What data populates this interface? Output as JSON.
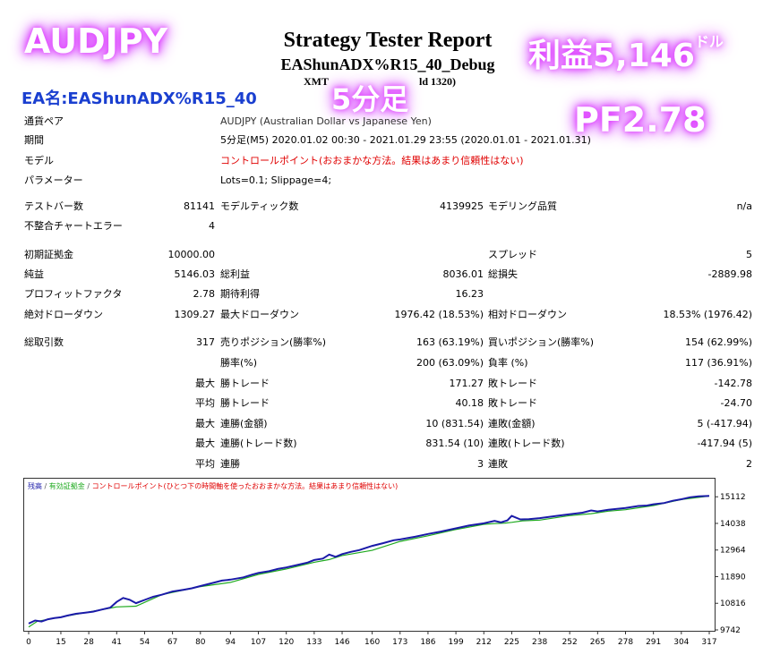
{
  "header": {
    "title": "Strategy Tester Report",
    "ea_title": "EAShunADX%R15_40_Debug",
    "sub_left": "XMT",
    "sub_right": "ld 1320)"
  },
  "overlay": {
    "pair": "AUDJPY",
    "profit": "利益5,146",
    "profit_unit": "ドル",
    "timeframe": "5分足",
    "pf": "PF2.78",
    "ea_name": "EA名:EAShunADX%R15_40"
  },
  "info": {
    "pair_label": "通貨ペア",
    "pair_value": "AUDJPY (Australian Dollar vs Japanese Yen)",
    "period_label": "期間",
    "period_value": "5分足(M5) 2020.01.02 00:30 - 2021.01.29 23:55 (2020.01.01 - 2021.01.31)",
    "model_label": "モデル",
    "model_value": "コントロールポイント(おおまかな方法。結果はあまり信頼性はない)",
    "params_label": "パラメーター",
    "params_value": "Lots=0.1; Slippage=4;"
  },
  "stats": {
    "bars_label": "テストバー数",
    "bars_value": "81141",
    "ticks_label": "モデルティック数",
    "ticks_value": "4139925",
    "quality_label": "モデリング品質",
    "quality_value": "n/a",
    "mismatch_label": "不整合チャートエラー",
    "mismatch_value": "4",
    "deposit_label": "初期証拠金",
    "deposit_value": "10000.00",
    "spread_label": "スプレッド",
    "spread_value": "5",
    "net_label": "純益",
    "net_value": "5146.03",
    "gross_profit_label": "総利益",
    "gross_profit_value": "8036.01",
    "gross_loss_label": "総損失",
    "gross_loss_value": "-2889.98",
    "pf_label": "プロフィットファクタ",
    "pf_value": "2.78",
    "expected_label": "期待利得",
    "expected_value": "16.23",
    "abs_dd_label": "絶対ドローダウン",
    "abs_dd_value": "1309.27",
    "max_dd_label": "最大ドローダウン",
    "max_dd_value": "1976.42 (18.53%)",
    "rel_dd_label": "相対ドローダウン",
    "rel_dd_value": "18.53% (1976.42)",
    "trades_label": "総取引数",
    "trades_value": "317",
    "short_label": "売りポジション(勝率%)",
    "short_value": "163 (63.19%)",
    "long_label": "買いポジション(勝率%)",
    "long_value": "154 (62.99%)",
    "win_label": "勝率(%)",
    "win_value": "200 (63.09%)",
    "loss_label": "負率 (%)",
    "loss_value": "117 (36.91%)",
    "max_word": "最大",
    "avg_word": "平均",
    "max_win_label": "勝トレード",
    "max_win_value": "171.27",
    "max_loss_label": "敗トレード",
    "max_loss_value": "-142.78",
    "avg_win_label": "勝トレード",
    "avg_win_value": "40.18",
    "avg_loss_label": "敗トレード",
    "avg_loss_value": "-24.70",
    "cons_wins_label": "連勝(金額)",
    "cons_wins_value": "10 (831.54)",
    "cons_losses_label": "連敗(金額)",
    "cons_losses_value": "5 (-417.94)",
    "cons_profit_label": "連勝(トレード数)",
    "cons_profit_value": "831.54 (10)",
    "cons_loss_label": "連敗(トレード数)",
    "cons_loss_value": "-417.94 (5)",
    "avg_cons_wins_label": "連勝",
    "avg_cons_wins_value": "3",
    "avg_cons_losses_label": "連敗",
    "avg_cons_losses_value": "2"
  },
  "chart_data": {
    "type": "line",
    "legend": [
      "残高",
      "有効証拠金",
      "コントロールポイント(ひとつ下の時間軸を使ったおおまかな方法。結果はあまり信頼性はない)"
    ],
    "colors": {
      "balance": "#1a1aa8",
      "equity": "#1faa1f",
      "legend_balance": "#1a1aa8",
      "legend_equity": "#1faa1f",
      "legend_note": "#e00000"
    },
    "x_ticks": [
      0,
      15,
      28,
      41,
      54,
      67,
      80,
      94,
      107,
      120,
      133,
      146,
      160,
      173,
      186,
      199,
      212,
      225,
      238,
      252,
      265,
      278,
      291,
      304,
      317
    ],
    "y_ticks": [
      9742,
      10816,
      11890,
      12964,
      14038,
      15112
    ],
    "xlim": [
      0,
      317
    ],
    "ylim": [
      9742,
      15300
    ],
    "balance": {
      "x": [
        0,
        3,
        6,
        9,
        12,
        15,
        18,
        22,
        26,
        30,
        34,
        38,
        41,
        44,
        47,
        50,
        54,
        58,
        62,
        67,
        72,
        76,
        80,
        86,
        90,
        94,
        100,
        104,
        107,
        112,
        116,
        120,
        125,
        130,
        133,
        137,
        140,
        143,
        146,
        150,
        154,
        160,
        165,
        170,
        173,
        180,
        186,
        192,
        199,
        205,
        212,
        217,
        220,
        223,
        225,
        229,
        233,
        238,
        245,
        252,
        258,
        262,
        265,
        270,
        274,
        278,
        284,
        288,
        291,
        296,
        300,
        304,
        308,
        312,
        317
      ],
      "y": [
        10000,
        10120,
        10080,
        10170,
        10220,
        10250,
        10320,
        10390,
        10430,
        10480,
        10560,
        10640,
        10870,
        11030,
        10960,
        10820,
        10950,
        11080,
        11160,
        11290,
        11360,
        11420,
        11510,
        11640,
        11730,
        11770,
        11860,
        11970,
        12040,
        12110,
        12200,
        12260,
        12360,
        12460,
        12560,
        12620,
        12780,
        12690,
        12800,
        12890,
        12960,
        13130,
        13240,
        13360,
        13390,
        13500,
        13610,
        13710,
        13840,
        13950,
        14040,
        14140,
        14080,
        14160,
        14340,
        14200,
        14210,
        14250,
        14330,
        14410,
        14470,
        14560,
        14520,
        14590,
        14620,
        14660,
        14740,
        14760,
        14810,
        14860,
        14950,
        15010,
        15090,
        15130,
        15146
      ]
    },
    "equity": {
      "x": [
        0,
        4,
        41,
        50,
        62,
        80,
        94,
        107,
        120,
        133,
        140,
        146,
        160,
        173,
        186,
        199,
        212,
        217,
        222,
        225,
        230,
        238,
        252,
        262,
        270,
        278,
        291,
        304,
        317
      ],
      "y": [
        9860,
        10090,
        10670,
        10700,
        11160,
        11490,
        11660,
        11980,
        12200,
        12470,
        12580,
        12740,
        12950,
        13310,
        13540,
        13790,
        14000,
        14030,
        14050,
        14080,
        14140,
        14170,
        14350,
        14430,
        14530,
        14590,
        14760,
        15000,
        15140
      ]
    }
  }
}
